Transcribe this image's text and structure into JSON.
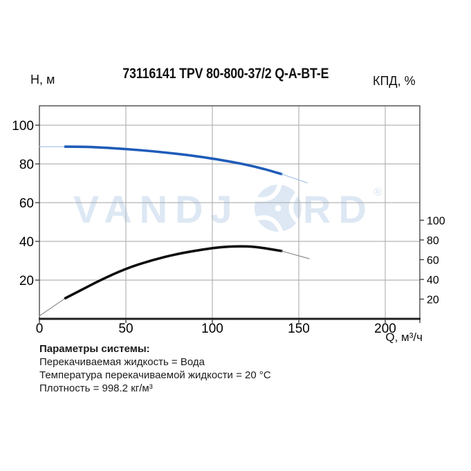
{
  "header": {
    "title": "73116141 TPV 80-800-37/2 Q-A-BT-E",
    "left_axis_label": "Н, м",
    "right_axis_label": "КПД, %"
  },
  "watermark": {
    "text_left": "VANDJ",
    "text_right": "RD",
    "registered": "®",
    "color": "#dde8f4"
  },
  "chart_data": {
    "type": "line",
    "title": "73116141 TPV 80-800-37/2 Q-A-BT-E",
    "xlabel": "Q, м³/ч",
    "ylabel_left": "Н, м",
    "ylabel_right": "КПД, %",
    "grid": true,
    "xlim": [
      0,
      220
    ],
    "ylim_left": [
      0,
      110
    ],
    "ylim_right": [
      0,
      216
    ],
    "x_ticks": [
      0,
      50,
      100,
      150,
      200
    ],
    "y_left_ticks": [
      20,
      40,
      60,
      80,
      100
    ],
    "y_right_ticks": [
      20,
      40,
      60,
      80,
      100
    ],
    "colors": {
      "grid": "#b3b3b3",
      "frame": "#3d3d3d",
      "axis_bottom": "#1f1f1f"
    },
    "series": [
      {
        "name": "head-H",
        "axis": "left",
        "color": "#1f5cb8",
        "thin_color": "#a6c3e6",
        "points_thin_start": [
          [
            0,
            88.9
          ],
          [
            15,
            88.9
          ]
        ],
        "points": [
          [
            15,
            88.9
          ],
          [
            25,
            88.9
          ],
          [
            35,
            88.5
          ],
          [
            50,
            87.7
          ],
          [
            65,
            86.6
          ],
          [
            80,
            85.2
          ],
          [
            95,
            83.5
          ],
          [
            110,
            81.3
          ],
          [
            125,
            78.6
          ],
          [
            140,
            74.8
          ]
        ],
        "points_thin_end": [
          [
            140,
            74.8
          ],
          [
            155,
            70.2
          ]
        ]
      },
      {
        "name": "efficiency-KPD",
        "axis": "right",
        "color": "#0d0d0d",
        "thin_color": "#8f8f8f",
        "points_thin_start": [
          [
            0,
            3
          ],
          [
            15,
            21
          ]
        ],
        "points": [
          [
            15,
            21
          ],
          [
            25,
            30
          ],
          [
            35,
            39
          ],
          [
            50,
            51
          ],
          [
            65,
            59.5
          ],
          [
            80,
            66
          ],
          [
            95,
            70.5
          ],
          [
            105,
            72.8
          ],
          [
            115,
            73.7
          ],
          [
            125,
            73.2
          ],
          [
            140,
            68.8
          ]
        ],
        "points_thin_end": [
          [
            140,
            68.8
          ],
          [
            156,
            61
          ]
        ]
      }
    ]
  },
  "params": {
    "heading": "Параметры системы:",
    "lines": [
      "Перекачиваемая жидкость = Вода",
      "Температура перекачиваемой жидкости = 20 °C",
      "Плотность = 998.2 кг/м³"
    ]
  }
}
